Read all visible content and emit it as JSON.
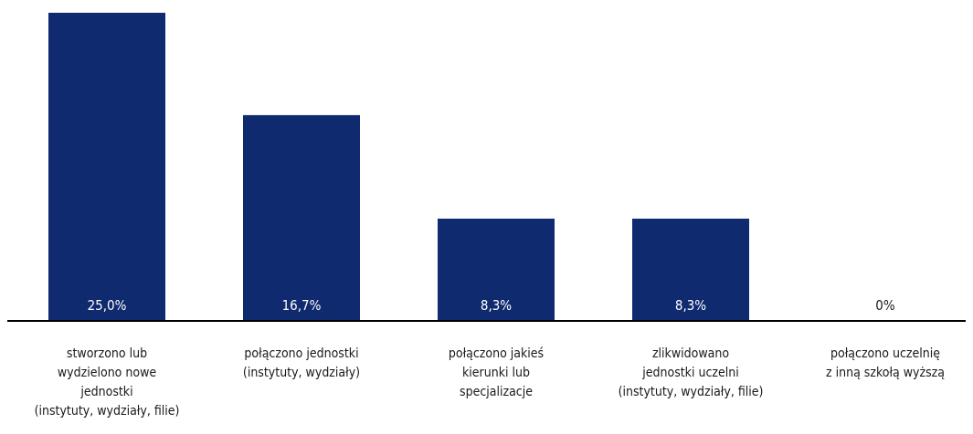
{
  "chart_data": {
    "type": "bar",
    "categories": [
      "stworzono lub wydzielono nowe jednostki (instytuty, wydziały, filie)",
      "połączono jednostki (instytuty, wydziały)",
      "połączono jakieś kierunki lub specjalizacje",
      "zlikwidowano jednostki uczelni (instytuty, wydziały, filie)",
      "połączono uczelnię z inną szkołą wyższą"
    ],
    "category_lines": [
      [
        "stworzono lub",
        "wydzielono nowe",
        "jednostki",
        "(instytuty, wydziały, filie)"
      ],
      [
        "połączono jednostki",
        "(instytuty, wydziały)"
      ],
      [
        "połączono jakieś",
        "kierunki lub",
        "specjalizacje"
      ],
      [
        "zlikwidowano",
        "jednostki uczelni",
        "(instytuty, wydziały, filie)"
      ],
      [
        "połączono uczelnię",
        "z inną szkołą wyższą"
      ]
    ],
    "values": [
      25.0,
      16.7,
      8.3,
      8.3,
      0
    ],
    "value_labels": [
      "25,0%",
      "16,7%",
      "8,3%",
      "8,3%",
      "0%"
    ],
    "ylim": [
      0,
      25
    ],
    "title": "",
    "xlabel": "",
    "ylabel": "",
    "grid": false,
    "legend": "none",
    "bar_color": "#0f2a6e",
    "value_label_color_inside": "#ffffff",
    "value_label_color_outside": "#1a1a1a",
    "axis_color": "#000000"
  }
}
